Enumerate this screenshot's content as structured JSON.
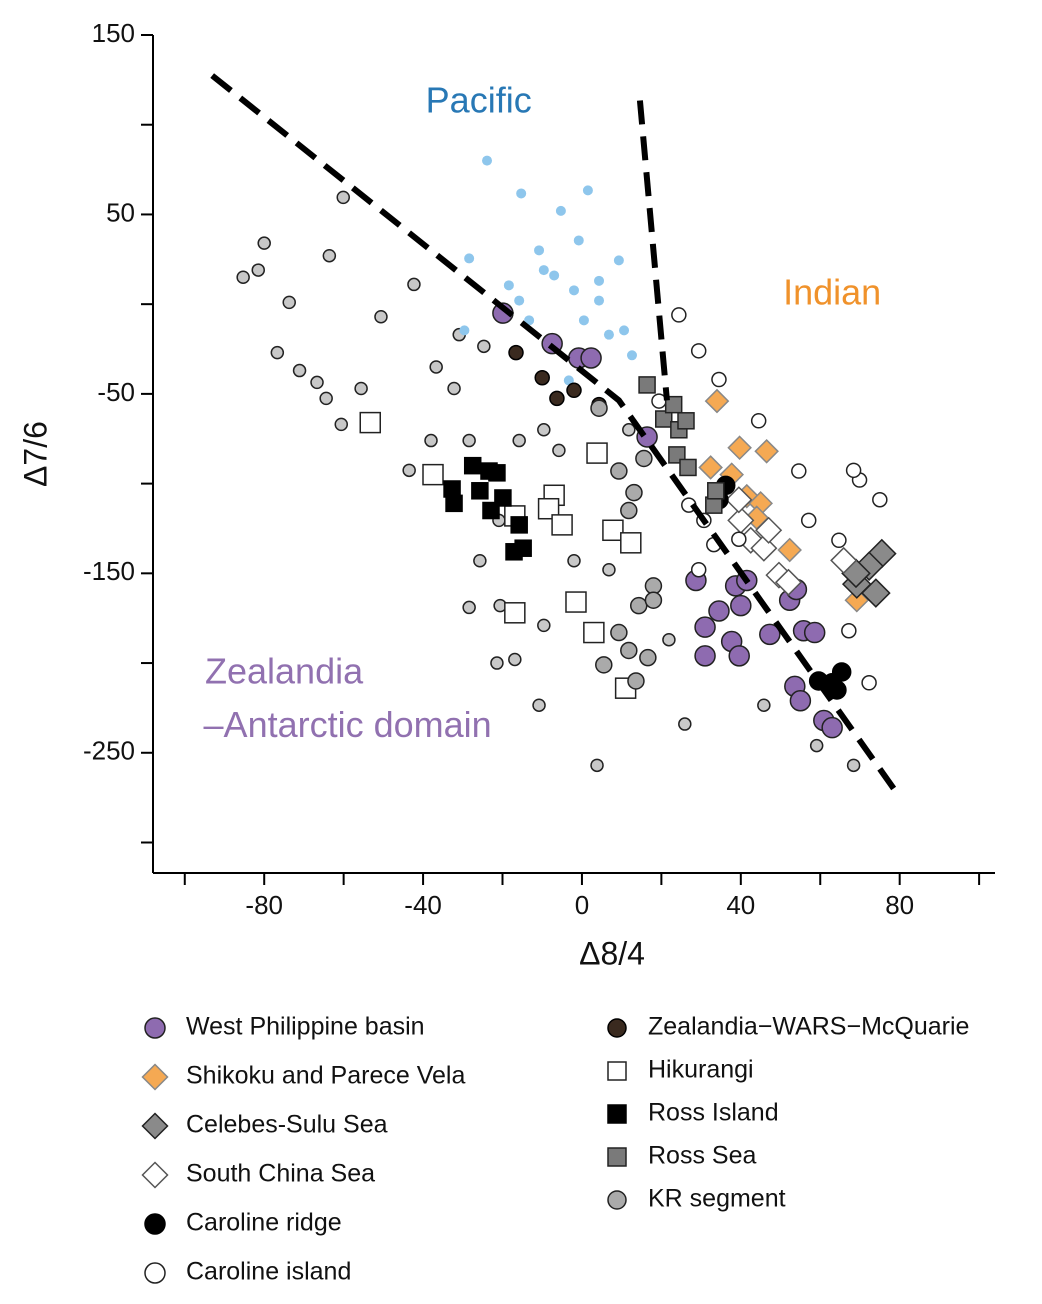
{
  "chart_data": {
    "type": "scatter",
    "x_label": "Δ8/4",
    "y_label": "Δ7/6",
    "xlim": [
      -108,
      104
    ],
    "ylim": [
      -317,
      150
    ],
    "xticks": [
      -80,
      -40,
      0,
      40,
      80
    ],
    "xminorticks": [
      -100,
      -60,
      -20,
      20,
      60,
      100
    ],
    "yticks": [
      150,
      50,
      -50,
      -150,
      -250
    ],
    "yminorticks": [
      100,
      0,
      -100,
      -200,
      -300
    ],
    "annotations": [
      {
        "text": "Pacific",
        "x": -26,
        "y": 112,
        "color": "#2878b5"
      },
      {
        "text": "Indian",
        "x": 63,
        "y": 5,
        "color": "#f0922b"
      },
      {
        "text": "Zealandia",
        "x": -75,
        "y": -206,
        "color": "#9171b0"
      },
      {
        "text": "–Antarctic domain",
        "x": -59,
        "y": -236,
        "color": "#9171b0"
      }
    ],
    "lines": [
      {
        "x": [
          -93.1,
          9.3,
          79.7
        ],
        "y": [
          127.4,
          -53.6,
          -273.7
        ]
      },
      {
        "x": [
          14.6,
          21.4
        ],
        "y": [
          113.5,
          -53.6
        ]
      }
    ],
    "series": [
      {
        "color": "#c8c8c8",
        "edgecolor": "#222",
        "marker": "circle",
        "x": [
          -80,
          -85.3,
          -81.5,
          -73.7,
          -63.6,
          -60.1,
          -76.7,
          -71.1,
          -66.7,
          -64.4,
          -60.6,
          -55.6,
          -42.3,
          -50.6,
          -36.7,
          -30.9,
          -24.7,
          -32.2,
          -38,
          -28.4,
          -15.8,
          -9.6,
          -25.7,
          -20.6,
          -16.9,
          -9.6,
          -10.8,
          3.8,
          25.9,
          45.8,
          59.1,
          68.4,
          -43.5,
          -28.4,
          -2,
          6.8,
          -20.9,
          -5.8,
          11.8,
          21.9,
          -21.4
        ],
        "y": [
          34,
          15,
          19,
          1,
          27,
          59.5,
          -27,
          -37,
          -43.6,
          -52.5,
          -67,
          -47,
          11,
          -7,
          -35,
          -17,
          -23.5,
          -47,
          -76,
          -76,
          -76,
          -70,
          -143,
          -168,
          -198,
          -179,
          -223.5,
          -257,
          -234,
          -223.5,
          -246,
          -257,
          -92.6,
          -169,
          -143,
          -148,
          -120.5,
          -81.5,
          -70,
          -187,
          -200
        ]
      },
      {
        "color": "#8ec6ec",
        "edgecolor": "none",
        "marker": "circle",
        "x": [
          -23.9,
          -15.3,
          1.5,
          -5.3,
          -10.8,
          -7,
          -2,
          -15.8,
          4.3,
          9.3,
          -28.4,
          -13.3,
          0.5,
          6.8,
          10.6,
          -29.6,
          -3.3,
          12.6,
          -9.6,
          -0.8,
          4.3,
          -18.4
        ],
        "y": [
          80,
          61.7,
          63.4,
          52,
          30,
          16,
          7.7,
          2,
          2,
          24.4,
          25.5,
          -9,
          -9,
          -17,
          -14.6,
          -14.6,
          -42.5,
          -28.5,
          19,
          35.5,
          13,
          10.5
        ]
      },
      {
        "name": "West Philippine basin",
        "color": "#8e6bb0",
        "edgecolor": "#222",
        "marker": "circle",
        "x": [
          -19.9,
          -7.5,
          -0.8,
          2.3,
          16.4,
          28.7,
          31,
          34.5,
          38.7,
          40,
          37.7,
          39.6,
          47.3,
          52.3,
          54,
          55.8,
          58.6,
          53.6,
          55,
          60.9,
          63,
          31,
          41.5
        ],
        "y": [
          -5,
          -22,
          -30,
          -30,
          -74,
          -154,
          -180,
          -171,
          -157,
          -168,
          -188,
          -196,
          -184,
          -165,
          -159,
          -182,
          -183,
          -213,
          -221,
          -232,
          -236,
          -196,
          -154
        ]
      },
      {
        "name": "Shikoku and Parece Vela",
        "color": "#f5a953",
        "edgecolor": "#888",
        "marker": "diamond",
        "x": [
          34,
          39.7,
          46.5,
          32.4,
          37.7,
          41.5,
          45,
          44,
          52.3,
          69.2
        ],
        "y": [
          -54,
          -80,
          -82,
          -91,
          -95,
          -107,
          -111,
          -119,
          -137,
          -165
        ]
      },
      {
        "name": "Celebes-Sulu Sea",
        "color": "#8a8a8a",
        "edgecolor": "#222",
        "marker": "diamond",
        "x": [
          75.5,
          72.3,
          69.2,
          74,
          69
        ],
        "y": [
          -139,
          -146,
          -156,
          -161,
          -150
        ]
      },
      {
        "name": "South China Sea",
        "color": "#ffffff",
        "edgecolor": "#555",
        "marker": "diamond",
        "x": [
          40,
          42.5,
          45.8,
          49.6,
          52,
          65.9,
          39.5,
          47
        ],
        "y": [
          -120.5,
          -131.6,
          -136,
          -151,
          -155,
          -142.8,
          -109,
          -126
        ]
      },
      {
        "name": "Caroline ridge",
        "color": "#000000",
        "edgecolor": "#000",
        "marker": "circle",
        "x": [
          65.4,
          64.2,
          63,
          59.6,
          36.2,
          34.5
        ],
        "y": [
          -205,
          -215,
          -211,
          -210,
          -101,
          -109
        ]
      },
      {
        "name": "Caroline island",
        "color": "#ffffff",
        "edgecolor": "#222",
        "marker": "circle",
        "x": [
          29.4,
          34.5,
          44.5,
          54.6,
          69.9,
          75,
          26.9,
          30.7,
          33.2,
          29.4,
          39.5,
          67.2,
          72.3,
          19.4,
          24.4,
          57.1,
          64.7,
          68.4
        ],
        "y": [
          -26,
          -42,
          -65,
          -93,
          -98,
          -109,
          -112,
          -120.5,
          -134,
          -148,
          -131,
          -182,
          -211,
          -54,
          -6,
          -120.5,
          -131.6,
          -92.6
        ]
      },
      {
        "name": "Zealandia−WARS−McQuarie",
        "color": "#3a2a1f",
        "edgecolor": "#000",
        "marker": "circle",
        "x": [
          -10,
          -6.3,
          4.3,
          -16.6,
          -2
        ],
        "y": [
          -41,
          -52.5,
          -56,
          -27,
          -48
        ]
      },
      {
        "name": "Hikurangi",
        "color": "#ffffff",
        "edgecolor": "#222",
        "marker": "square",
        "x": [
          -53.3,
          -37.5,
          -7,
          -8.4,
          -16.9,
          -5,
          3.8,
          7.8,
          12.3,
          -1.5,
          3,
          -16.9,
          11
        ],
        "y": [
          -66,
          -95,
          -106.5,
          -114,
          -118,
          -123,
          -83,
          -126,
          -133,
          -166,
          -183,
          -172,
          -214
        ]
      },
      {
        "name": "Ross Island",
        "color": "#000000",
        "edgecolor": "#000",
        "marker": "square",
        "x": [
          -32.7,
          -27.5,
          -23.4,
          -25.7,
          -21.4,
          -19.9,
          -22.9,
          -15.8,
          -14.8,
          -17.1,
          -32.2
        ],
        "y": [
          -103,
          -90,
          -93,
          -104,
          -94,
          -108,
          -115,
          -123,
          -136,
          -138,
          -111
        ]
      },
      {
        "name": "Ross Sea",
        "color": "#7a7a7a",
        "edgecolor": "#222",
        "marker": "square",
        "x": [
          16.4,
          20.6,
          23.1,
          24.4,
          26.2,
          23.9,
          26.7,
          33.2,
          33.7
        ],
        "y": [
          -45,
          -64,
          -56,
          -70,
          -65,
          -84,
          -91,
          -112,
          -104
        ]
      },
      {
        "name": "KR segment",
        "color": "#aaaaaa",
        "edgecolor": "#222",
        "marker": "circle",
        "x": [
          9.3,
          13.1,
          11.8,
          18,
          14.3,
          18,
          9.3,
          11.8,
          5.5,
          13.6,
          16.6,
          4.3,
          15.6
        ],
        "y": [
          -93,
          -105,
          -115,
          -157,
          -168,
          -165,
          -183,
          -193,
          -201,
          -210,
          -197,
          -58,
          -86
        ]
      }
    ]
  }
}
